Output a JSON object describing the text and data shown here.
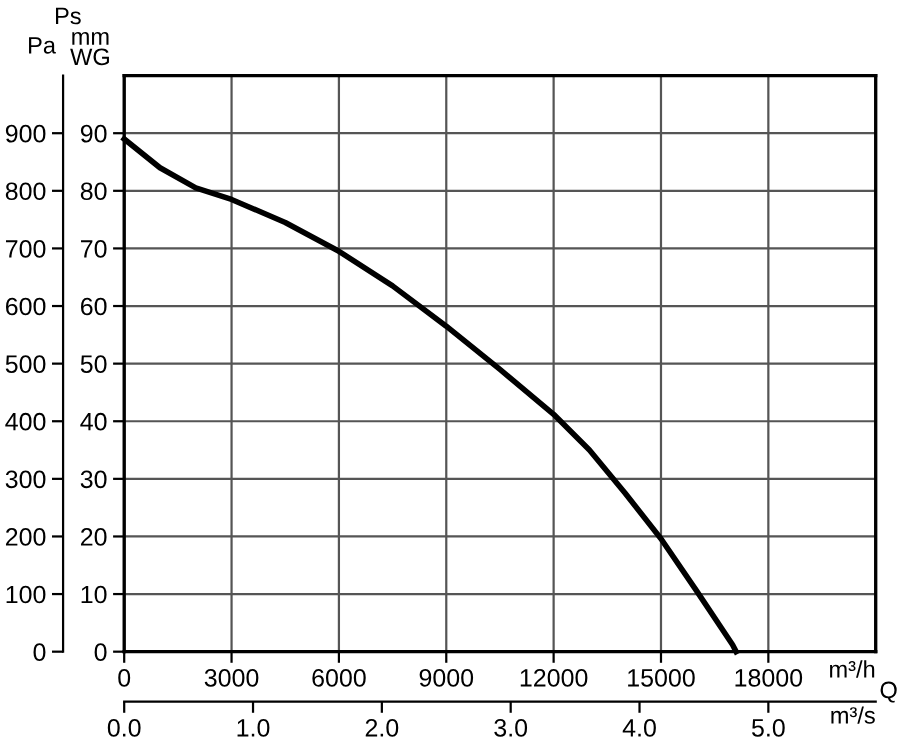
{
  "chart_data": {
    "type": "line",
    "x": [
      0,
      1000,
      2000,
      3000,
      4500,
      6000,
      7500,
      9000,
      10500,
      12000,
      13000,
      14000,
      15000,
      16000,
      17000,
      17100
    ],
    "series": [
      {
        "color": "#000000",
        "values": [
          890,
          840,
          805,
          785,
          745,
          695,
          635,
          565,
          490,
          412,
          350,
          275,
          196,
          105,
          12,
          0
        ]
      }
    ],
    "xlabel": "m³/h",
    "x2label": "m³/s",
    "ylabel": "Pa",
    "y2label": "mm WG",
    "annotations": [
      "Ps",
      "Q"
    ],
    "xlim": [
      0,
      21000
    ],
    "xticks": [
      0,
      3000,
      6000,
      9000,
      12000,
      15000,
      18000
    ],
    "x2lim": [
      0,
      5.8333
    ],
    "x2ticks": [
      {
        "value": 0,
        "label": "0.0"
      },
      {
        "value": 1,
        "label": "1.0"
      },
      {
        "value": 2,
        "label": "2.0"
      },
      {
        "value": 3,
        "label": "3.0"
      },
      {
        "value": 4,
        "label": "4.0"
      },
      {
        "value": 5,
        "label": "5.0"
      }
    ],
    "ylim": [
      0,
      1000
    ],
    "yticks": [
      0,
      100,
      200,
      300,
      400,
      500,
      600,
      700,
      800,
      900
    ],
    "y2lim": [
      0,
      100
    ],
    "y2ticks": [
      0,
      10,
      20,
      30,
      40,
      50,
      60,
      70,
      80,
      90
    ],
    "grid": true,
    "line_style": "solid",
    "marker": "none"
  }
}
